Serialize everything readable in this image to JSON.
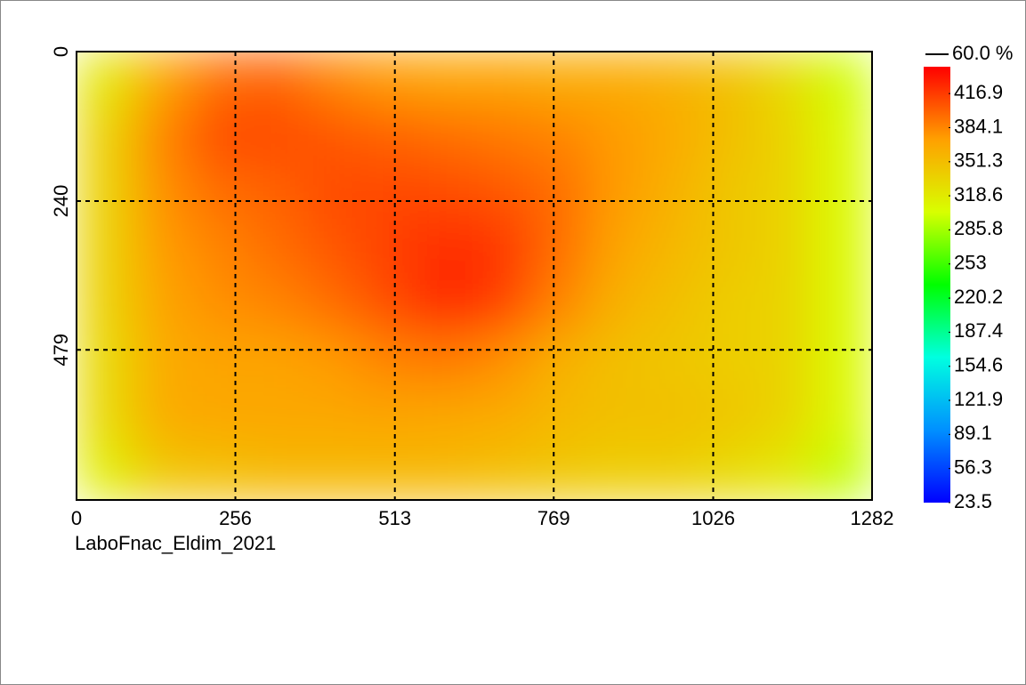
{
  "chart_data": {
    "type": "heatmap",
    "subtitle": "LaboFnac_Eldim_2021",
    "contour_label": "60.0 %",
    "xlim": [
      0,
      1282
    ],
    "xticks": [
      0,
      256,
      513,
      769,
      1026,
      1282
    ],
    "ylim": [
      0,
      720
    ],
    "yticks": [
      0,
      240,
      479
    ],
    "clim": [
      23.5,
      442.7
    ],
    "cticks": [
      416.9,
      384.1,
      351.3,
      318.6,
      285.8,
      253.0,
      220.2,
      187.4,
      154.6,
      121.9,
      89.1,
      56.3,
      23.5
    ],
    "colorscale": [
      "#0000ff",
      "#0090ff",
      "#00ffe0",
      "#00ff00",
      "#d8ff00",
      "#ffa000",
      "#ff0000"
    ],
    "grid": true,
    "z": [
      [
        320,
        370,
        395,
        400,
        385,
        375,
        370,
        370,
        365,
        365,
        360,
        350,
        330,
        300
      ],
      [
        335,
        385,
        410,
        410,
        405,
        400,
        395,
        390,
        385,
        375,
        365,
        350,
        335,
        305
      ],
      [
        335,
        380,
        395,
        400,
        410,
        412,
        410,
        405,
        395,
        375,
        360,
        345,
        335,
        305
      ],
      [
        335,
        375,
        385,
        395,
        405,
        415,
        425,
        420,
        395,
        370,
        355,
        345,
        335,
        305
      ],
      [
        335,
        370,
        380,
        385,
        395,
        410,
        428,
        415,
        385,
        360,
        350,
        340,
        335,
        305
      ],
      [
        330,
        365,
        370,
        370,
        375,
        385,
        390,
        380,
        360,
        350,
        345,
        340,
        335,
        305
      ],
      [
        330,
        365,
        368,
        368,
        368,
        370,
        368,
        365,
        355,
        350,
        350,
        345,
        335,
        305
      ],
      [
        315,
        345,
        350,
        355,
        355,
        355,
        355,
        350,
        345,
        340,
        340,
        330,
        320,
        295
      ]
    ]
  }
}
